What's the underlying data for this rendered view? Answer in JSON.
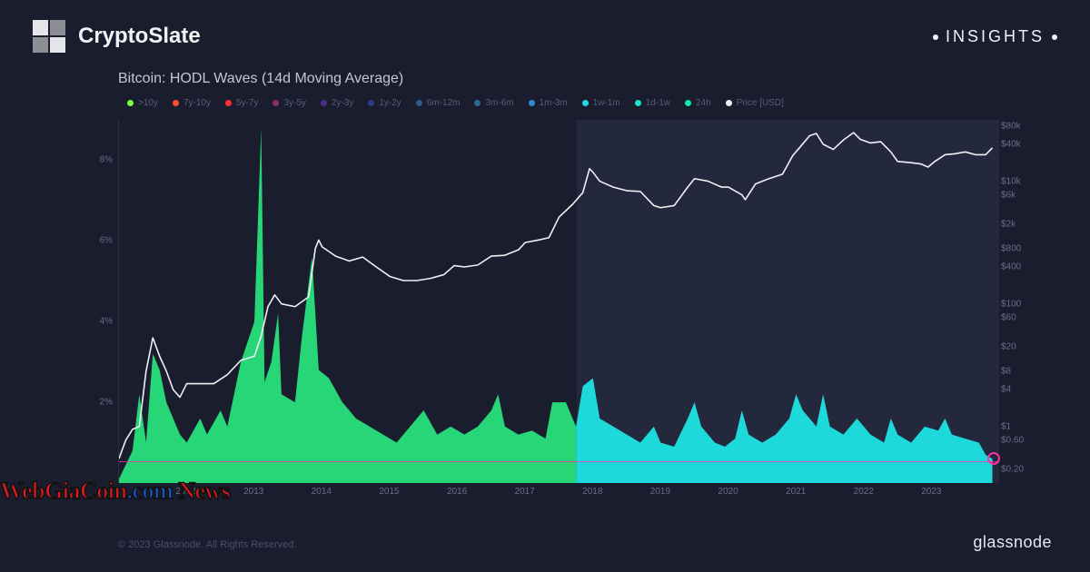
{
  "header": {
    "brand": "CryptoSlate",
    "insights": "INSIGHTS"
  },
  "chart": {
    "title": "Bitcoin: HODL Waves (14d Moving Average)",
    "type": "area+line",
    "background_color": "#1a1d2e",
    "overlay_right_color": "rgba(60,64,90,0.32)",
    "x": {
      "years": [
        2012,
        2013,
        2014,
        2015,
        2016,
        2017,
        2018,
        2019,
        2020,
        2021,
        2022,
        2023
      ],
      "min_year": 2011,
      "max_year": 2024
    },
    "y_left": {
      "label": "percent",
      "ticks": [
        2,
        4,
        6,
        8
      ],
      "min": 0,
      "max": 9
    },
    "y_right": {
      "label": "price_usd_log",
      "ticks": [
        "$0.20",
        "$0.60",
        "$1",
        "$4",
        "$8",
        "$20",
        "$60",
        "$100",
        "$400",
        "$800",
        "$2k",
        "$6k",
        "$10k",
        "$40k",
        "$80k"
      ],
      "tick_values": [
        0.2,
        0.6,
        1,
        4,
        8,
        20,
        60,
        100,
        400,
        800,
        2000,
        6000,
        10000,
        40000,
        80000
      ],
      "log_min": 0.12,
      "log_max": 100000
    },
    "legend": [
      {
        "label": ">10y",
        "color": "#7cff3b"
      },
      {
        "label": "7y-10y",
        "color": "#ff4d2e"
      },
      {
        "label": "5y-7y",
        "color": "#ff2e2e"
      },
      {
        "label": "3y-5y",
        "color": "#8b2e66"
      },
      {
        "label": "2y-3y",
        "color": "#4a2e8b"
      },
      {
        "label": "1y-2y",
        "color": "#2e3a8b"
      },
      {
        "label": "6m-12m",
        "color": "#2e5a8b"
      },
      {
        "label": "3m-6m",
        "color": "#2e6a8b"
      },
      {
        "label": "1m-3m",
        "color": "#2e8ad6"
      },
      {
        "label": "1w-1m",
        "color": "#26d7e0"
      },
      {
        "label": "1d-1w",
        "color": "#1fe0d0"
      },
      {
        "label": "24h",
        "color": "#17e8b0"
      },
      {
        "label": "Price [USD]",
        "color": "#f0f0f5"
      }
    ],
    "area_left": {
      "color": "#28e07a",
      "fill_opacity": 0.95,
      "points": [
        [
          2011.0,
          0.1
        ],
        [
          2011.2,
          0.8
        ],
        [
          2011.3,
          2.2
        ],
        [
          2011.4,
          1.0
        ],
        [
          2011.5,
          3.2
        ],
        [
          2011.6,
          2.8
        ],
        [
          2011.7,
          2.0
        ],
        [
          2011.9,
          1.2
        ],
        [
          2012.0,
          1.0
        ],
        [
          2012.2,
          1.6
        ],
        [
          2012.3,
          1.2
        ],
        [
          2012.5,
          1.8
        ],
        [
          2012.6,
          1.4
        ],
        [
          2012.8,
          3.0
        ],
        [
          2013.0,
          4.0
        ],
        [
          2013.1,
          8.8
        ],
        [
          2013.15,
          2.5
        ],
        [
          2013.25,
          3.0
        ],
        [
          2013.35,
          4.2
        ],
        [
          2013.4,
          2.2
        ],
        [
          2013.6,
          2.0
        ],
        [
          2013.7,
          3.6
        ],
        [
          2013.85,
          5.6
        ],
        [
          2013.95,
          2.8
        ],
        [
          2014.1,
          2.6
        ],
        [
          2014.3,
          2.0
        ],
        [
          2014.5,
          1.6
        ],
        [
          2014.7,
          1.4
        ],
        [
          2014.9,
          1.2
        ],
        [
          2015.1,
          1.0
        ],
        [
          2015.3,
          1.4
        ],
        [
          2015.5,
          1.8
        ],
        [
          2015.7,
          1.2
        ],
        [
          2015.9,
          1.4
        ],
        [
          2016.1,
          1.2
        ],
        [
          2016.3,
          1.4
        ],
        [
          2016.5,
          1.8
        ],
        [
          2016.6,
          2.2
        ],
        [
          2016.7,
          1.4
        ],
        [
          2016.9,
          1.2
        ],
        [
          2017.1,
          1.3
        ],
        [
          2017.3,
          1.1
        ],
        [
          2017.4,
          2.0
        ],
        [
          2017.6,
          2.0
        ],
        [
          2017.75,
          1.4
        ]
      ]
    },
    "area_right": {
      "color": "#1de3e3",
      "fill_opacity": 0.95,
      "points": [
        [
          2017.75,
          1.4
        ],
        [
          2017.85,
          2.4
        ],
        [
          2018.0,
          2.6
        ],
        [
          2018.1,
          1.6
        ],
        [
          2018.3,
          1.4
        ],
        [
          2018.5,
          1.2
        ],
        [
          2018.7,
          1.0
        ],
        [
          2018.9,
          1.4
        ],
        [
          2019.0,
          1.0
        ],
        [
          2019.2,
          0.9
        ],
        [
          2019.4,
          1.6
        ],
        [
          2019.5,
          2.0
        ],
        [
          2019.6,
          1.4
        ],
        [
          2019.8,
          1.0
        ],
        [
          2019.95,
          0.9
        ],
        [
          2020.1,
          1.1
        ],
        [
          2020.2,
          1.8
        ],
        [
          2020.3,
          1.2
        ],
        [
          2020.5,
          1.0
        ],
        [
          2020.7,
          1.2
        ],
        [
          2020.9,
          1.6
        ],
        [
          2021.0,
          2.2
        ],
        [
          2021.1,
          1.8
        ],
        [
          2021.3,
          1.4
        ],
        [
          2021.4,
          2.2
        ],
        [
          2021.5,
          1.4
        ],
        [
          2021.7,
          1.2
        ],
        [
          2021.9,
          1.6
        ],
        [
          2022.1,
          1.2
        ],
        [
          2022.3,
          1.0
        ],
        [
          2022.4,
          1.6
        ],
        [
          2022.5,
          1.2
        ],
        [
          2022.7,
          1.0
        ],
        [
          2022.9,
          1.4
        ],
        [
          2023.1,
          1.3
        ],
        [
          2023.2,
          1.6
        ],
        [
          2023.3,
          1.2
        ],
        [
          2023.5,
          1.1
        ],
        [
          2023.7,
          1.0
        ],
        [
          2023.8,
          0.7
        ],
        [
          2023.9,
          0.6
        ]
      ]
    },
    "price_line": {
      "color": "#f0f0f5",
      "width": 1.6,
      "points": [
        [
          2011.0,
          0.3
        ],
        [
          2011.1,
          0.6
        ],
        [
          2011.2,
          0.9
        ],
        [
          2011.3,
          1.0
        ],
        [
          2011.4,
          8.0
        ],
        [
          2011.5,
          28
        ],
        [
          2011.6,
          14
        ],
        [
          2011.7,
          8
        ],
        [
          2011.8,
          4
        ],
        [
          2011.9,
          3
        ],
        [
          2012.0,
          5
        ],
        [
          2012.2,
          5
        ],
        [
          2012.4,
          5
        ],
        [
          2012.6,
          7
        ],
        [
          2012.8,
          12
        ],
        [
          2013.0,
          14
        ],
        [
          2013.1,
          30
        ],
        [
          2013.2,
          90
        ],
        [
          2013.3,
          140
        ],
        [
          2013.4,
          100
        ],
        [
          2013.6,
          90
        ],
        [
          2013.8,
          130
        ],
        [
          2013.9,
          800
        ],
        [
          2013.95,
          1100
        ],
        [
          2014.0,
          850
        ],
        [
          2014.2,
          600
        ],
        [
          2014.4,
          500
        ],
        [
          2014.6,
          580
        ],
        [
          2014.8,
          400
        ],
        [
          2015.0,
          280
        ],
        [
          2015.2,
          240
        ],
        [
          2015.4,
          240
        ],
        [
          2015.6,
          260
        ],
        [
          2015.8,
          300
        ],
        [
          2015.95,
          420
        ],
        [
          2016.1,
          400
        ],
        [
          2016.3,
          430
        ],
        [
          2016.5,
          600
        ],
        [
          2016.7,
          620
        ],
        [
          2016.9,
          760
        ],
        [
          2017.0,
          1000
        ],
        [
          2017.2,
          1100
        ],
        [
          2017.35,
          1200
        ],
        [
          2017.5,
          2600
        ],
        [
          2017.7,
          4200
        ],
        [
          2017.85,
          6500
        ],
        [
          2017.95,
          16000
        ],
        [
          2018.0,
          14000
        ],
        [
          2018.1,
          10000
        ],
        [
          2018.3,
          8000
        ],
        [
          2018.5,
          7000
        ],
        [
          2018.7,
          6800
        ],
        [
          2018.9,
          4000
        ],
        [
          2019.0,
          3700
        ],
        [
          2019.2,
          4000
        ],
        [
          2019.4,
          8000
        ],
        [
          2019.5,
          11000
        ],
        [
          2019.7,
          10000
        ],
        [
          2019.9,
          8000
        ],
        [
          2020.0,
          8000
        ],
        [
          2020.2,
          6000
        ],
        [
          2020.25,
          5000
        ],
        [
          2020.4,
          9000
        ],
        [
          2020.6,
          11000
        ],
        [
          2020.8,
          13000
        ],
        [
          2020.95,
          26000
        ],
        [
          2021.05,
          35000
        ],
        [
          2021.2,
          55000
        ],
        [
          2021.3,
          60000
        ],
        [
          2021.4,
          40000
        ],
        [
          2021.55,
          33000
        ],
        [
          2021.7,
          47000
        ],
        [
          2021.85,
          62000
        ],
        [
          2021.95,
          48000
        ],
        [
          2022.1,
          42000
        ],
        [
          2022.25,
          44000
        ],
        [
          2022.4,
          30000
        ],
        [
          2022.5,
          21000
        ],
        [
          2022.7,
          20000
        ],
        [
          2022.85,
          19000
        ],
        [
          2022.95,
          17000
        ],
        [
          2023.05,
          21000
        ],
        [
          2023.2,
          27000
        ],
        [
          2023.35,
          28000
        ],
        [
          2023.5,
          30000
        ],
        [
          2023.65,
          27000
        ],
        [
          2023.8,
          27000
        ],
        [
          2023.9,
          35000
        ]
      ]
    },
    "split_year": 2017.75,
    "zero_line_color": "#ff2ea6",
    "end_marker_color": "#ff2ea6",
    "end_marker": [
      2023.9,
      0.6
    ]
  },
  "footer": {
    "copyright": "© 2023 Glassnode. All Rights Reserved.",
    "glassnode": "glassnode"
  },
  "watermark": {
    "a": "WebGiaCoin",
    "b": ".com",
    "c": " News"
  }
}
